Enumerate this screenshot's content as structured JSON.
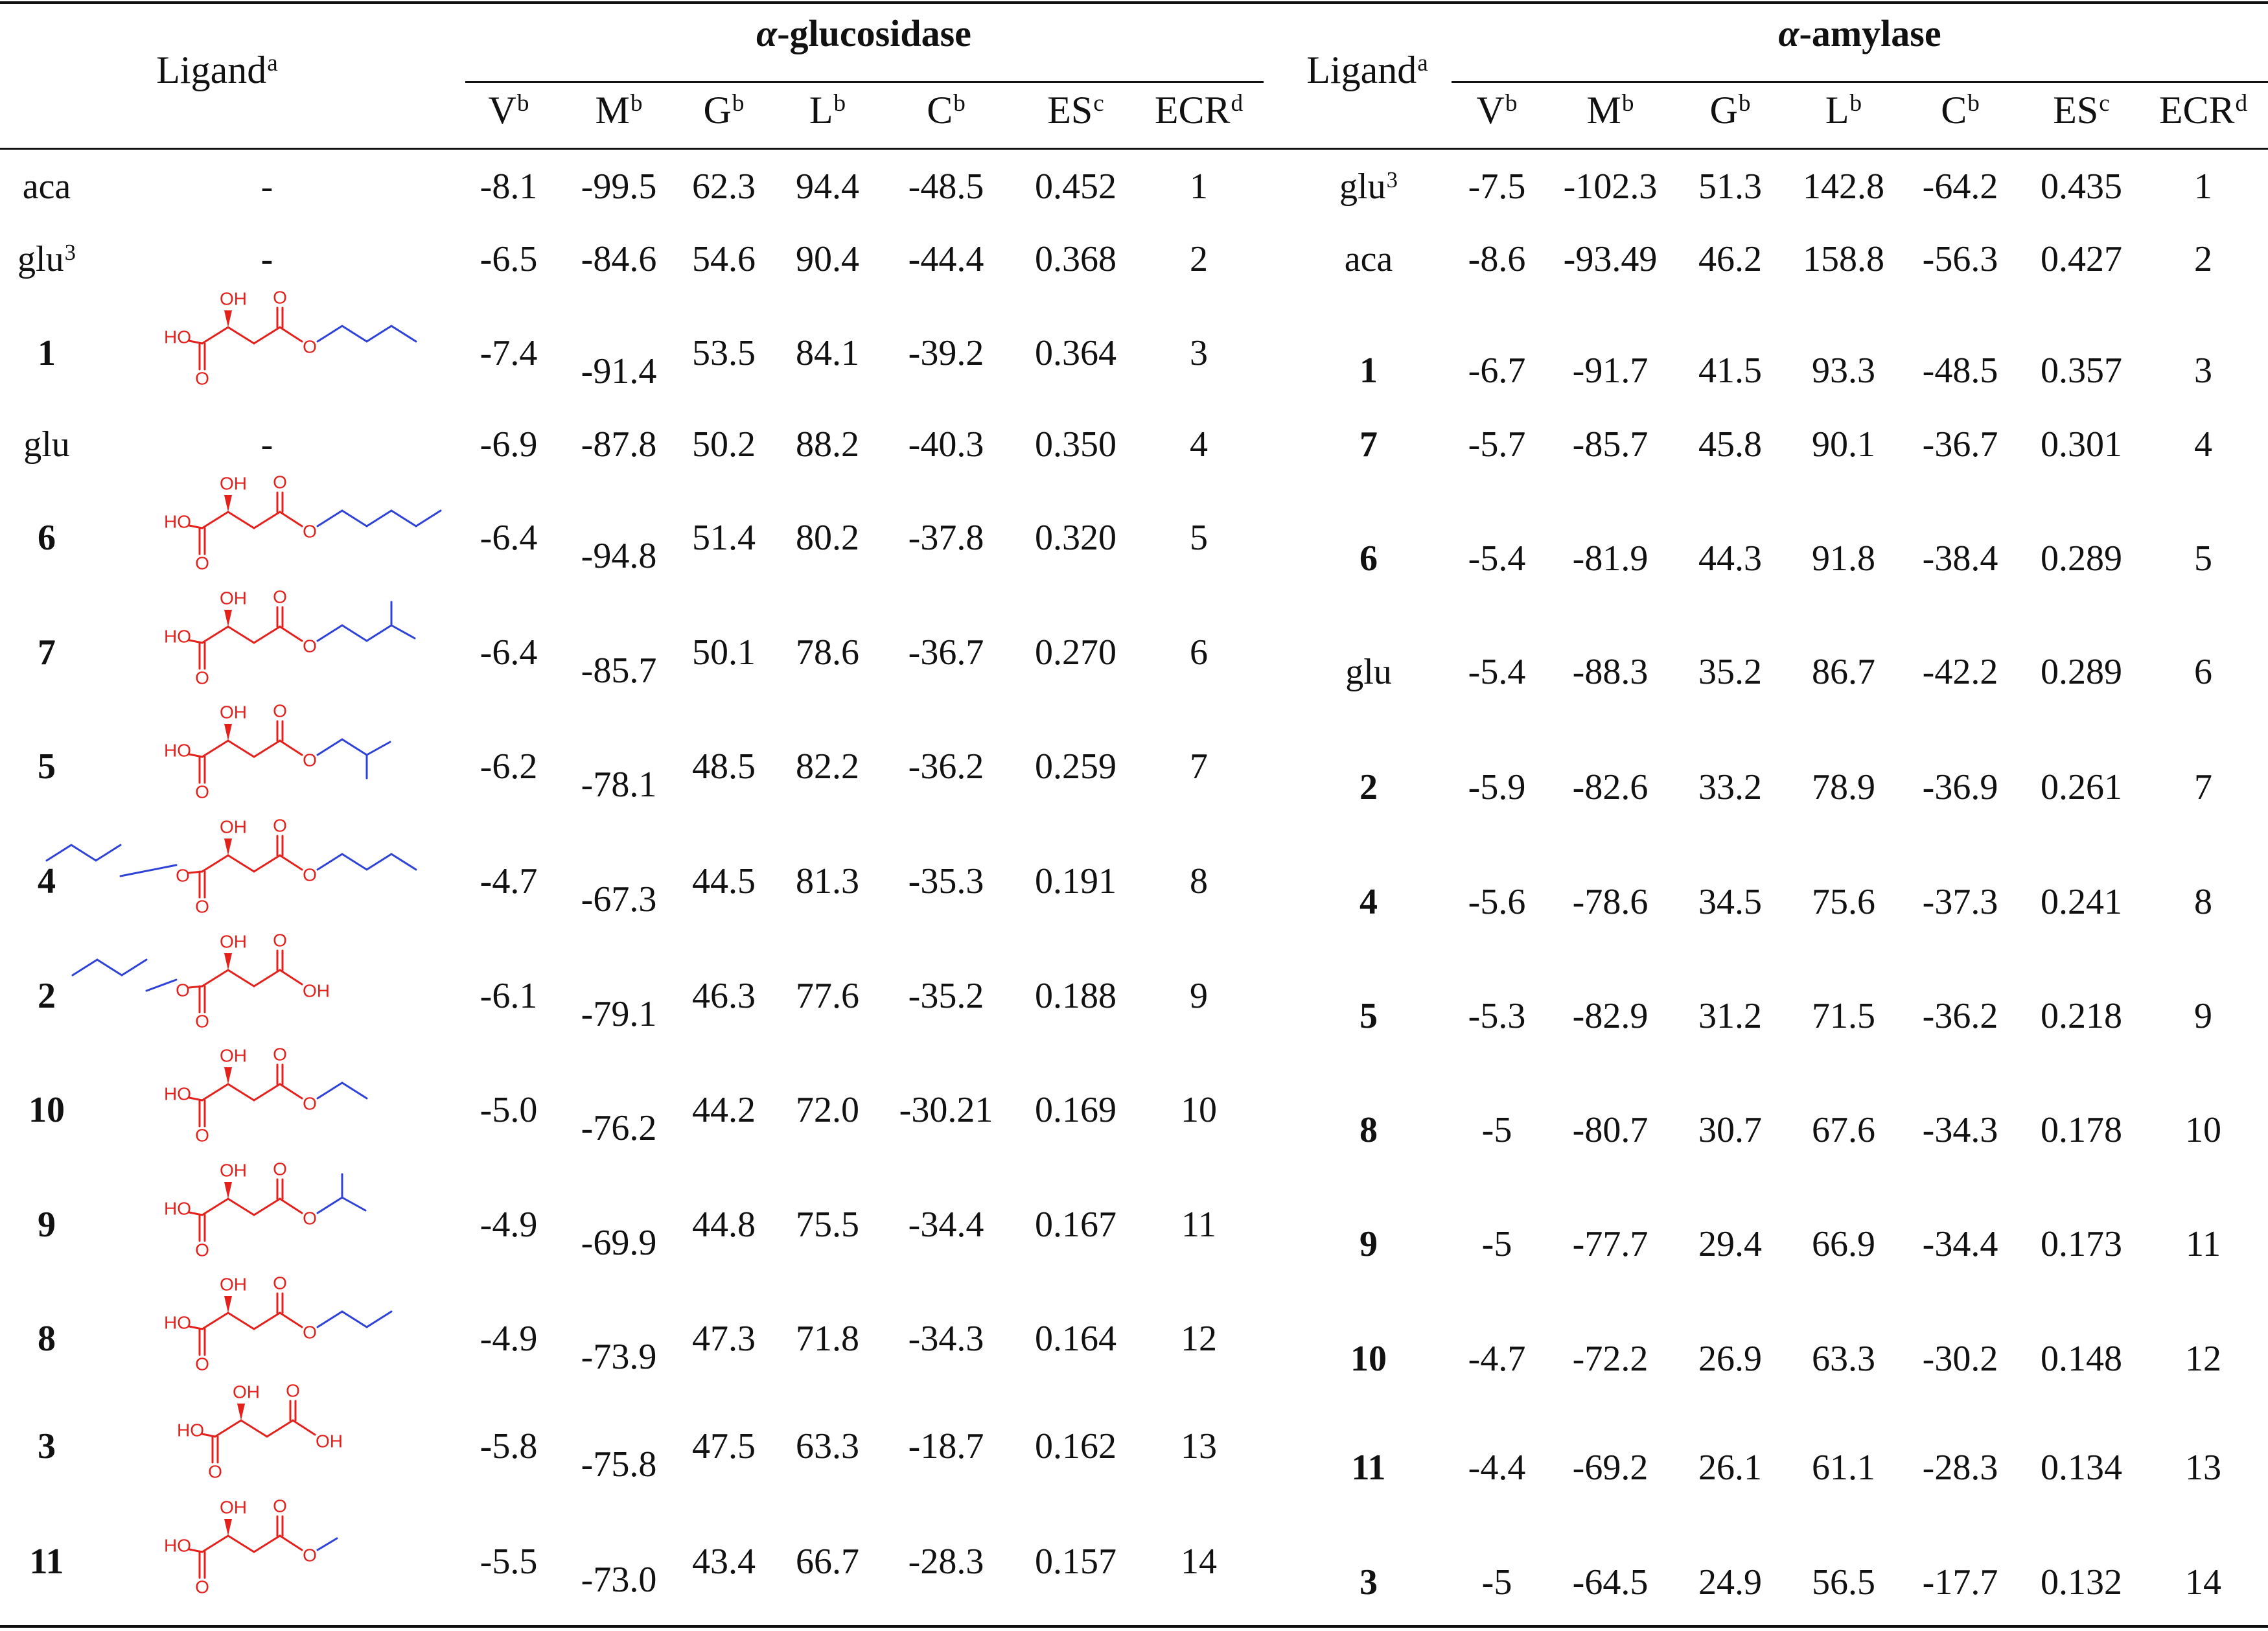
{
  "headers": {
    "ligand": "Ligand",
    "ligand_sup": "a",
    "group_glucosidase_greek": "α",
    "group_glucosidase_rest": "-glucosidase",
    "group_amylase_greek": "α",
    "group_amylase_rest": "-amylase",
    "columns": [
      {
        "base": "V",
        "sup": "b"
      },
      {
        "base": "M",
        "sup": "b"
      },
      {
        "base": "G",
        "sup": "b"
      },
      {
        "base": "L",
        "sup": "b"
      },
      {
        "base": "C",
        "sup": "b"
      },
      {
        "base": "ES",
        "sup": "c"
      },
      {
        "base": "ECR",
        "sup": "d"
      }
    ]
  },
  "colors": {
    "red_fragment": "#e3211c",
    "blue_fragment": "#2f42d8",
    "text": "#111111"
  },
  "glucosidase_rows": [
    {
      "ligand": "aca",
      "sup": "",
      "bold": false,
      "structure": "-",
      "V": "-8.1",
      "M": "-99.5",
      "G": "62.3",
      "L": "94.4",
      "C": "-48.5",
      "ES": "0.452",
      "ECR": "1"
    },
    {
      "ligand": "glu",
      "sup": "3",
      "bold": false,
      "structure": "-",
      "V": "-6.5",
      "M": "-84.6",
      "G": "54.6",
      "L": "90.4",
      "C": "-44.4",
      "ES": "0.368",
      "ECR": "2"
    },
    {
      "ligand": "1",
      "sup": "",
      "bold": true,
      "structure": "mol-butyl",
      "V": "-7.4",
      "M": "-91.4",
      "G": "53.5",
      "L": "84.1",
      "C": "-39.2",
      "ES": "0.364",
      "ECR": "3"
    },
    {
      "ligand": "glu",
      "sup": "",
      "bold": false,
      "structure": "-",
      "V": "-6.9",
      "M": "-87.8",
      "G": "50.2",
      "L": "88.2",
      "C": "-40.3",
      "ES": "0.350",
      "ECR": "4"
    },
    {
      "ligand": "6",
      "sup": "",
      "bold": true,
      "structure": "mol-pentyl",
      "V": "-6.4",
      "M": "-94.8",
      "G": "51.4",
      "L": "80.2",
      "C": "-37.8",
      "ES": "0.320",
      "ECR": "5"
    },
    {
      "ligand": "7",
      "sup": "",
      "bold": true,
      "structure": "mol-isopentyl",
      "V": "-6.4",
      "M": "-85.7",
      "G": "50.1",
      "L": "78.6",
      "C": "-36.7",
      "ES": "0.270",
      "ECR": "6"
    },
    {
      "ligand": "5",
      "sup": "",
      "bold": true,
      "structure": "mol-isobutyl",
      "V": "-6.2",
      "M": "-78.1",
      "G": "48.5",
      "L": "82.2",
      "C": "-36.2",
      "ES": "0.259",
      "ECR": "7"
    },
    {
      "ligand": "4",
      "sup": "",
      "bold": true,
      "structure": "mol-dibutyl",
      "V": "-4.7",
      "M": "-67.3",
      "G": "44.5",
      "L": "81.3",
      "C": "-35.3",
      "ES": "0.191",
      "ECR": "8"
    },
    {
      "ligand": "2",
      "sup": "",
      "bold": true,
      "structure": "mol-butyl-rev",
      "V": "-6.1",
      "M": "-79.1",
      "G": "46.3",
      "L": "77.6",
      "C": "-35.2",
      "ES": "0.188",
      "ECR": "9"
    },
    {
      "ligand": "10",
      "sup": "",
      "bold": true,
      "structure": "mol-ethyl",
      "V": "-5.0",
      "M": "-76.2",
      "G": "44.2",
      "L": "72.0",
      "C": "-30.21",
      "ES": "0.169",
      "ECR": "10"
    },
    {
      "ligand": "9",
      "sup": "",
      "bold": true,
      "structure": "mol-isopropyl",
      "V": "-4.9",
      "M": "-69.9",
      "G": "44.8",
      "L": "75.5",
      "C": "-34.4",
      "ES": "0.167",
      "ECR": "11"
    },
    {
      "ligand": "8",
      "sup": "",
      "bold": true,
      "structure": "mol-propyl",
      "V": "-4.9",
      "M": "-73.9",
      "G": "47.3",
      "L": "71.8",
      "C": "-34.3",
      "ES": "0.164",
      "ECR": "12"
    },
    {
      "ligand": "3",
      "sup": "",
      "bold": true,
      "structure": "mol-acid",
      "V": "-5.8",
      "M": "-75.8",
      "G": "47.5",
      "L": "63.3",
      "C": "-18.7",
      "ES": "0.162",
      "ECR": "13"
    },
    {
      "ligand": "11",
      "sup": "",
      "bold": true,
      "structure": "mol-methyl",
      "V": "-5.5",
      "M": "-73.0",
      "G": "43.4",
      "L": "66.7",
      "C": "-28.3",
      "ES": "0.157",
      "ECR": "14"
    }
  ],
  "amylase_rows": [
    {
      "ligand": "glu",
      "sup": "3",
      "bold": false,
      "V": "-7.5",
      "M": "-102.3",
      "G": "51.3",
      "L": "142.8",
      "C": "-64.2",
      "ES": "0.435",
      "ECR": "1"
    },
    {
      "ligand": "aca",
      "sup": "",
      "bold": false,
      "V": "-8.6",
      "M": "-93.49",
      "G": "46.2",
      "L": "158.8",
      "C": "-56.3",
      "ES": "0.427",
      "ECR": "2"
    },
    {
      "ligand": "1",
      "sup": "",
      "bold": true,
      "V": "-6.7",
      "M": "-91.7",
      "G": "41.5",
      "L": "93.3",
      "C": "-48.5",
      "ES": "0.357",
      "ECR": "3"
    },
    {
      "ligand": "7",
      "sup": "",
      "bold": true,
      "V": "-5.7",
      "M": "-85.7",
      "G": "45.8",
      "L": "90.1",
      "C": "-36.7",
      "ES": "0.301",
      "ECR": "4"
    },
    {
      "ligand": "6",
      "sup": "",
      "bold": true,
      "V": "-5.4",
      "M": "-81.9",
      "G": "44.3",
      "L": "91.8",
      "C": "-38.4",
      "ES": "0.289",
      "ECR": "5"
    },
    {
      "ligand": "glu",
      "sup": "",
      "bold": false,
      "V": "-5.4",
      "M": "-88.3",
      "G": "35.2",
      "L": "86.7",
      "C": "-42.2",
      "ES": "0.289",
      "ECR": "6"
    },
    {
      "ligand": "2",
      "sup": "",
      "bold": true,
      "V": "-5.9",
      "M": "-82.6",
      "G": "33.2",
      "L": "78.9",
      "C": "-36.9",
      "ES": "0.261",
      "ECR": "7"
    },
    {
      "ligand": "4",
      "sup": "",
      "bold": true,
      "V": "-5.6",
      "M": "-78.6",
      "G": "34.5",
      "L": "75.6",
      "C": "-37.3",
      "ES": "0.241",
      "ECR": "8"
    },
    {
      "ligand": "5",
      "sup": "",
      "bold": true,
      "V": "-5.3",
      "M": "-82.9",
      "G": "31.2",
      "L": "71.5",
      "C": "-36.2",
      "ES": "0.218",
      "ECR": "9"
    },
    {
      "ligand": "8",
      "sup": "",
      "bold": true,
      "V": "-5",
      "M": "-80.7",
      "G": "30.7",
      "L": "67.6",
      "C": "-34.3",
      "ES": "0.178",
      "ECR": "10"
    },
    {
      "ligand": "9",
      "sup": "",
      "bold": true,
      "V": "-5",
      "M": "-77.7",
      "G": "29.4",
      "L": "66.9",
      "C": "-34.4",
      "ES": "0.173",
      "ECR": "11"
    },
    {
      "ligand": "10",
      "sup": "",
      "bold": true,
      "V": "-4.7",
      "M": "-72.2",
      "G": "26.9",
      "L": "63.3",
      "C": "-30.2",
      "ES": "0.148",
      "ECR": "12"
    },
    {
      "ligand": "11",
      "sup": "",
      "bold": true,
      "V": "-4.4",
      "M": "-69.2",
      "G": "26.1",
      "L": "61.1",
      "C": "-28.3",
      "ES": "0.134",
      "ECR": "13"
    },
    {
      "ligand": "3",
      "sup": "",
      "bold": true,
      "V": "-5",
      "M": "-64.5",
      "G": "24.9",
      "L": "56.5",
      "C": "-17.7",
      "ES": "0.132",
      "ECR": "14"
    }
  ],
  "molecule_labels": {
    "hydroxyl": "OH",
    "acid_left": "HO",
    "acid_right": "OH",
    "oxygen": "O"
  }
}
